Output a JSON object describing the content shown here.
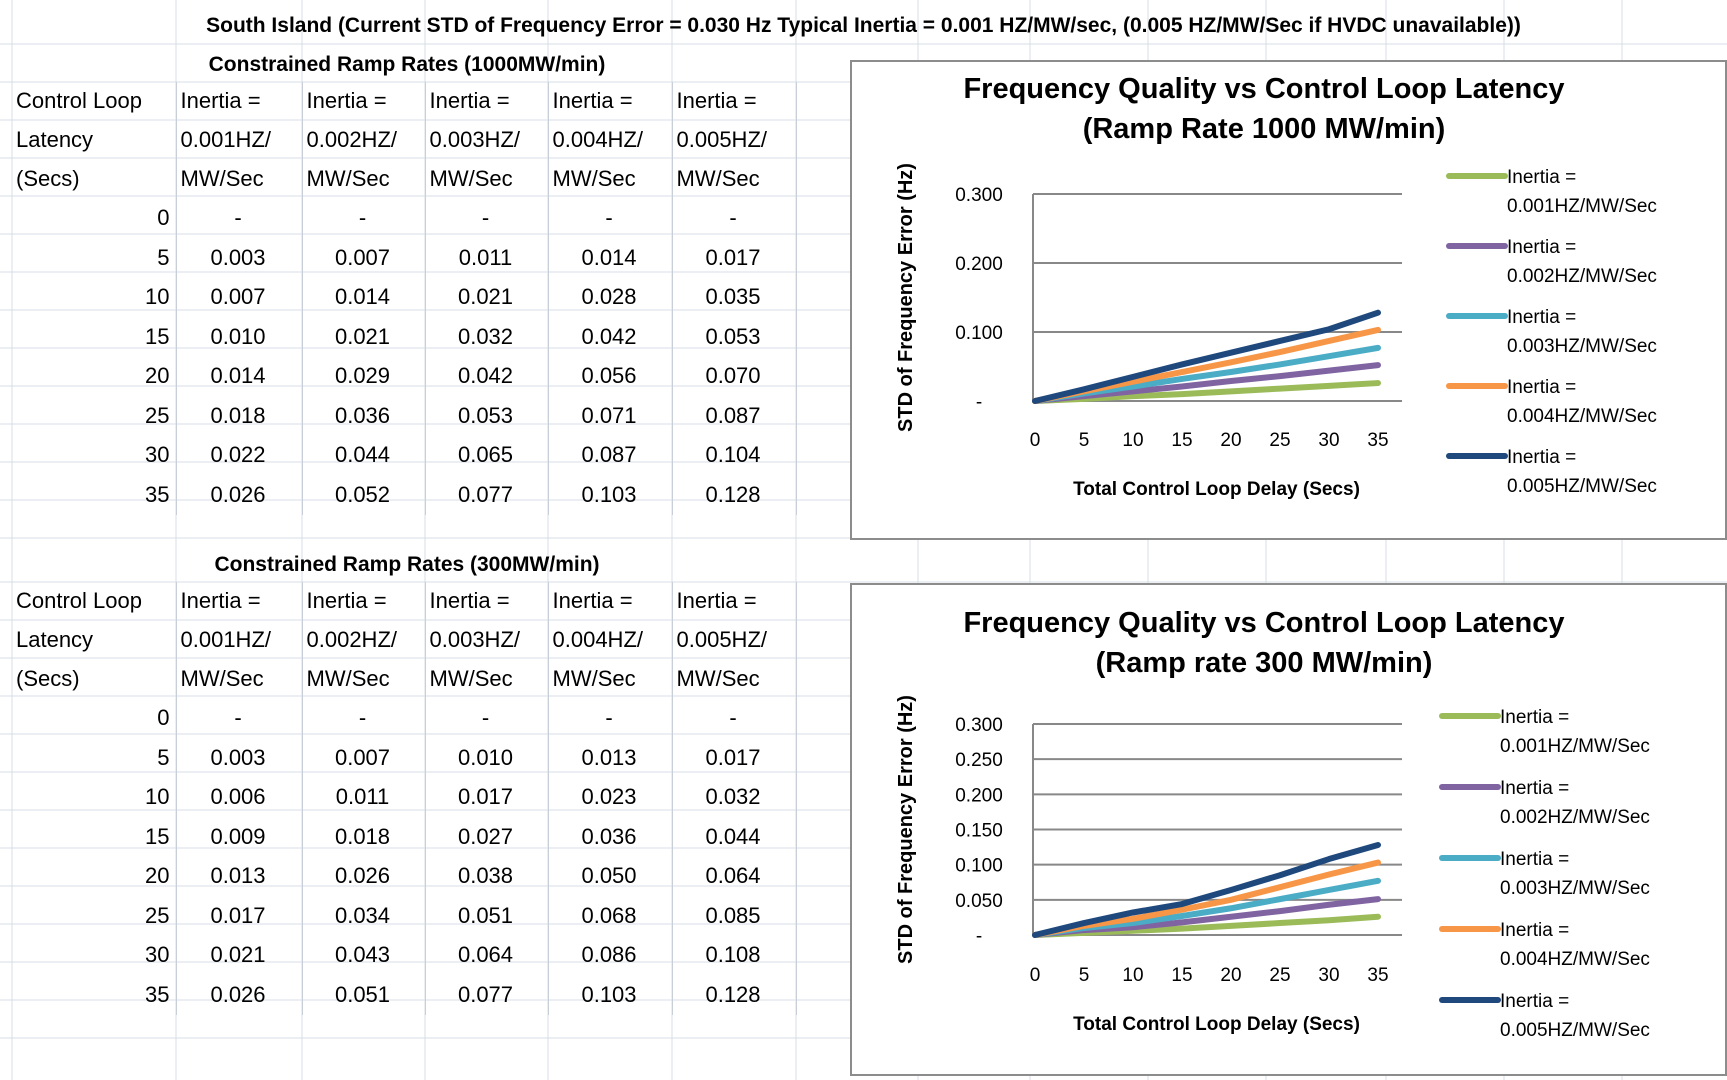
{
  "main_title": "South Island (Current STD of Frequency Error = 0.030 Hz Typical Inertia = 0.001 HZ/MW/sec, (0.005 HZ/MW/Sec if HVDC unavailable))",
  "sections": [
    {
      "title": "Constrained Ramp Rates (1000MW/min)",
      "header_col0": [
        "Control Loop",
        "Latency",
        "(Secs)"
      ],
      "header_cols": [
        [
          "Inertia =",
          "0.001HZ/",
          "MW/Sec"
        ],
        [
          "Inertia =",
          "0.002HZ/",
          "MW/Sec"
        ],
        [
          "Inertia =",
          "0.003HZ/",
          "MW/Sec"
        ],
        [
          "Inertia =",
          "0.004HZ/",
          "MW/Sec"
        ],
        [
          "Inertia =",
          "0.005HZ/",
          "MW/Sec"
        ]
      ],
      "rows": [
        [
          "0",
          "-",
          "-",
          "-",
          "-",
          "-"
        ],
        [
          "5",
          "0.003",
          "0.007",
          "0.011",
          "0.014",
          "0.017"
        ],
        [
          "10",
          "0.007",
          "0.014",
          "0.021",
          "0.028",
          "0.035"
        ],
        [
          "15",
          "0.010",
          "0.021",
          "0.032",
          "0.042",
          "0.053"
        ],
        [
          "20",
          "0.014",
          "0.029",
          "0.042",
          "0.056",
          "0.070"
        ],
        [
          "25",
          "0.018",
          "0.036",
          "0.053",
          "0.071",
          "0.087"
        ],
        [
          "30",
          "0.022",
          "0.044",
          "0.065",
          "0.087",
          "0.104"
        ],
        [
          "35",
          "0.026",
          "0.052",
          "0.077",
          "0.103",
          "0.128"
        ]
      ]
    },
    {
      "title": "Constrained Ramp Rates (300MW/min)",
      "header_col0": [
        "Control Loop",
        "Latency",
        "(Secs)"
      ],
      "header_cols": [
        [
          "Inertia =",
          "0.001HZ/",
          "MW/Sec"
        ],
        [
          "Inertia =",
          "0.002HZ/",
          "MW/Sec"
        ],
        [
          "Inertia =",
          "0.003HZ/",
          "MW/Sec"
        ],
        [
          "Inertia =",
          "0.004HZ/",
          "MW/Sec"
        ],
        [
          "Inertia =",
          "0.005HZ/",
          "MW/Sec"
        ]
      ],
      "rows": [
        [
          "0",
          "-",
          "-",
          "-",
          "-",
          "-"
        ],
        [
          "5",
          "0.003",
          "0.007",
          "0.010",
          "0.013",
          "0.017"
        ],
        [
          "10",
          "0.006",
          "0.011",
          "0.017",
          "0.023",
          "0.032"
        ],
        [
          "15",
          "0.009",
          "0.018",
          "0.027",
          "0.036",
          "0.044"
        ],
        [
          "20",
          "0.013",
          "0.026",
          "0.038",
          "0.050",
          "0.064"
        ],
        [
          "25",
          "0.017",
          "0.034",
          "0.051",
          "0.068",
          "0.085"
        ],
        [
          "30",
          "0.021",
          "0.043",
          "0.064",
          "0.086",
          "0.108"
        ],
        [
          "35",
          "0.026",
          "0.051",
          "0.077",
          "0.103",
          "0.128"
        ]
      ]
    }
  ],
  "chart_data": [
    {
      "type": "line",
      "title": [
        "Frequency Quality vs Control Loop Latency",
        "(Ramp Rate 1000 MW/min)"
      ],
      "xlabel": "Total Control Loop Delay (Secs)",
      "ylabel": "STD of Frequency Error (Hz)",
      "x": [
        0,
        5,
        10,
        15,
        20,
        25,
        30,
        35
      ],
      "ylim": [
        0,
        0.3
      ],
      "yticks": [
        0,
        0.1,
        0.2,
        0.3
      ],
      "ytick_labels": [
        "-",
        "0.100",
        "0.200",
        "0.300"
      ],
      "grid": true,
      "legend_position": "right",
      "series": [
        {
          "name": [
            "Inertia =",
            "0.001HZ/MW/Sec"
          ],
          "color": "#9bbb59",
          "values": [
            0,
            0.003,
            0.007,
            0.01,
            0.014,
            0.018,
            0.022,
            0.026
          ]
        },
        {
          "name": [
            "Inertia =",
            "0.002HZ/MW/Sec"
          ],
          "color": "#8064a2",
          "values": [
            0,
            0.007,
            0.014,
            0.021,
            0.029,
            0.036,
            0.044,
            0.052
          ]
        },
        {
          "name": [
            "Inertia =",
            "0.003HZ/MW/Sec"
          ],
          "color": "#4bacc6",
          "values": [
            0,
            0.011,
            0.021,
            0.032,
            0.042,
            0.053,
            0.065,
            0.077
          ]
        },
        {
          "name": [
            "Inertia =",
            "0.004HZ/MW/Sec"
          ],
          "color": "#f79646",
          "values": [
            0,
            0.014,
            0.028,
            0.042,
            0.056,
            0.071,
            0.087,
            0.103
          ]
        },
        {
          "name": [
            "Inertia =",
            "0.005HZ/MW/Sec"
          ],
          "color": "#1f497d",
          "values": [
            0,
            0.017,
            0.035,
            0.053,
            0.07,
            0.087,
            0.104,
            0.128
          ]
        }
      ]
    },
    {
      "type": "line",
      "title": [
        "Frequency Quality vs Control Loop Latency",
        "(Ramp rate 300 MW/min)"
      ],
      "xlabel": "Total Control Loop Delay (Secs)",
      "ylabel": "STD of Frequency Error (Hz)",
      "x": [
        0,
        5,
        10,
        15,
        20,
        25,
        30,
        35
      ],
      "ylim": [
        0,
        0.3
      ],
      "yticks": [
        0,
        0.05,
        0.1,
        0.15,
        0.2,
        0.25,
        0.3
      ],
      "ytick_labels": [
        "-",
        "0.050",
        "0.100",
        "0.150",
        "0.200",
        "0.250",
        "0.300"
      ],
      "grid": true,
      "legend_position": "right",
      "series": [
        {
          "name": [
            "Inertia =",
            "0.001HZ/MW/Sec"
          ],
          "color": "#9bbb59",
          "values": [
            0,
            0.003,
            0.006,
            0.009,
            0.013,
            0.017,
            0.021,
            0.026
          ]
        },
        {
          "name": [
            "Inertia =",
            "0.002HZ/MW/Sec"
          ],
          "color": "#8064a2",
          "values": [
            0,
            0.007,
            0.011,
            0.018,
            0.026,
            0.034,
            0.043,
            0.051
          ]
        },
        {
          "name": [
            "Inertia =",
            "0.003HZ/MW/Sec"
          ],
          "color": "#4bacc6",
          "values": [
            0,
            0.01,
            0.017,
            0.027,
            0.038,
            0.051,
            0.064,
            0.077
          ]
        },
        {
          "name": [
            "Inertia =",
            "0.004HZ/MW/Sec"
          ],
          "color": "#f79646",
          "values": [
            0,
            0.013,
            0.023,
            0.036,
            0.05,
            0.068,
            0.086,
            0.103
          ]
        },
        {
          "name": [
            "Inertia =",
            "0.005HZ/MW/Sec"
          ],
          "color": "#1f497d",
          "values": [
            0,
            0.017,
            0.032,
            0.044,
            0.064,
            0.085,
            0.108,
            0.128
          ]
        }
      ]
    }
  ]
}
